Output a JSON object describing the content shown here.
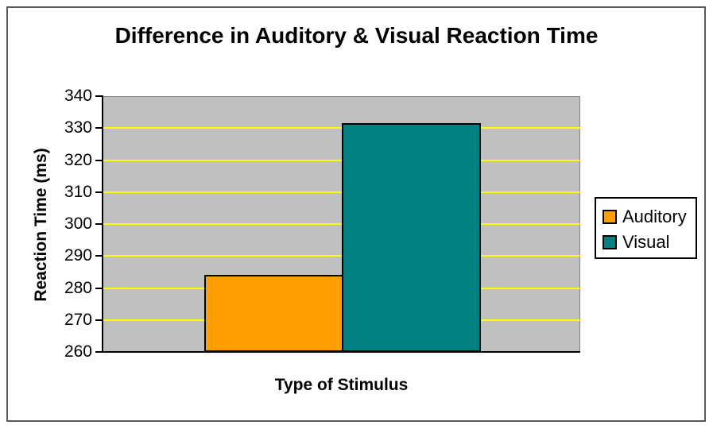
{
  "chart_data": {
    "type": "bar",
    "title": "Difference in Auditory & Visual Reaction Time",
    "xlabel": "Type of Stimulus",
    "ylabel": "Reaction Time (ms)",
    "ylim": [
      260,
      340
    ],
    "ytick_step": 10,
    "yticks": [
      340,
      330,
      320,
      310,
      300,
      290,
      280,
      270,
      260
    ],
    "series": [
      {
        "name": "Auditory",
        "value": 284,
        "color": "#FFA000"
      },
      {
        "name": "Visual",
        "value": 331.5,
        "color": "#008080"
      }
    ],
    "legend_position": "right",
    "grid": "horizontal-only",
    "colors": {
      "plot_background": "#C0C0C0",
      "gridline": "#FFFF00",
      "axis_line": "#000000",
      "figure_border": "#595959",
      "legend_background": "#FFFFFF",
      "text": "#000000"
    }
  }
}
